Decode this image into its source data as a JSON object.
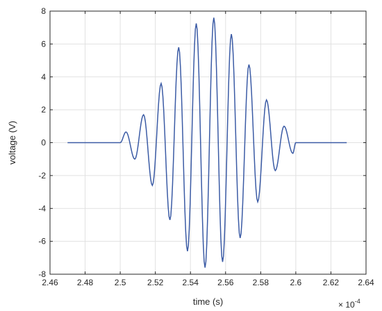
{
  "chart_data": {
    "type": "line",
    "xlabel": "time (s)",
    "ylabel": "voltage (V)",
    "x_exponent_label": "× 10",
    "x_exponent_power": "-4",
    "xlim": [
      2.46,
      2.64
    ],
    "ylim": [
      -8,
      8
    ],
    "x_ticks": [
      "2.46",
      "2.48",
      "2.5",
      "2.52",
      "2.54",
      "2.56",
      "2.58",
      "2.6",
      "2.62",
      "2.64"
    ],
    "y_ticks": [
      "-8",
      "-6",
      "-4",
      "-2",
      "0",
      "2",
      "4",
      "6",
      "8"
    ],
    "grid": true,
    "line_color": "#3b5ba5",
    "series": [
      {
        "signal_start": 2.47,
        "burst_start": 2.5,
        "burst_end": 2.6,
        "signal_end": 2.629,
        "peaks": [
          {
            "x": 2.5033,
            "y": 0.65
          },
          {
            "x": 2.5083,
            "y": -1.0
          },
          {
            "x": 2.5133,
            "y": 1.7
          },
          {
            "x": 2.5183,
            "y": -2.6
          },
          {
            "x": 2.5233,
            "y": 3.6
          },
          {
            "x": 2.5283,
            "y": -4.7
          },
          {
            "x": 2.5333,
            "y": 5.8
          },
          {
            "x": 2.5383,
            "y": -6.6
          },
          {
            "x": 2.5433,
            "y": 7.25
          },
          {
            "x": 2.5483,
            "y": -7.6
          },
          {
            "x": 2.5533,
            "y": 7.6
          },
          {
            "x": 2.5583,
            "y": -7.25
          },
          {
            "x": 2.5633,
            "y": 6.6
          },
          {
            "x": 2.5683,
            "y": -5.8
          },
          {
            "x": 2.5733,
            "y": 4.75
          },
          {
            "x": 2.5783,
            "y": -3.6
          },
          {
            "x": 2.5833,
            "y": 2.6
          },
          {
            "x": 2.5883,
            "y": -1.7
          },
          {
            "x": 2.5933,
            "y": 1.0
          },
          {
            "x": 2.5983,
            "y": -0.65
          }
        ]
      }
    ]
  }
}
